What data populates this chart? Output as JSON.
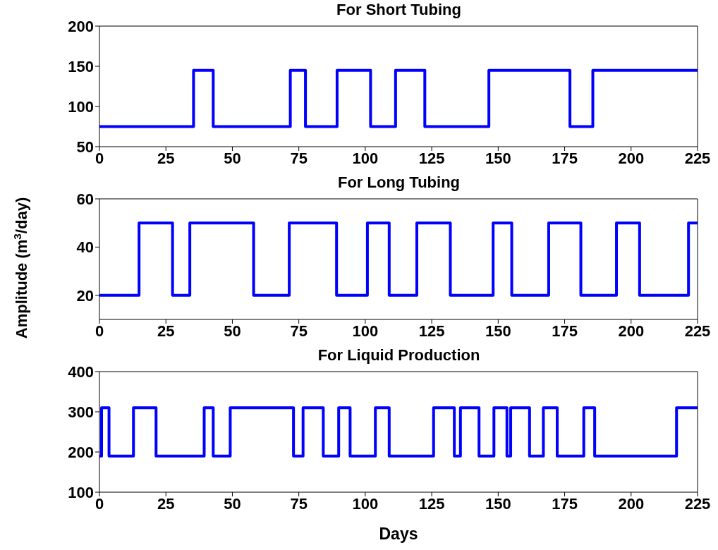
{
  "chart_data": [
    {
      "type": "step",
      "title": "For Short Tubing",
      "color": "#0000ff",
      "x": [
        0,
        35.4,
        42.8,
        71.8,
        77.5,
        89.4,
        102,
        111.4,
        122.4,
        146.5,
        177,
        185.6,
        225
      ],
      "values": [
        75,
        145,
        75,
        145,
        75,
        145,
        75,
        145,
        75,
        145,
        75,
        145,
        145
      ],
      "xlim": [
        0,
        225
      ],
      "xticks": [
        0,
        25,
        50,
        75,
        100,
        125,
        150,
        175,
        200,
        225
      ],
      "ylim": [
        50,
        200
      ],
      "yticks": [
        50,
        100,
        150,
        200
      ]
    },
    {
      "type": "step",
      "title": "For Long Tubing",
      "ylabel": "Amplitude (m$^{3}$/day)",
      "color": "#0000ff",
      "x": [
        0,
        14.9,
        27.5,
        34,
        58,
        71.4,
        89.2,
        100.8,
        109,
        119.4,
        132,
        148.1,
        155.1,
        169,
        181.1,
        194.5,
        203.2,
        221.6,
        225
      ],
      "values": [
        20,
        50,
        20,
        50,
        20,
        50,
        20,
        50,
        20,
        50,
        20,
        50,
        20,
        50,
        20,
        50,
        20,
        50,
        50
      ],
      "xlim": [
        0,
        225
      ],
      "xticks": [
        0,
        25,
        50,
        75,
        100,
        125,
        150,
        175,
        200,
        225
      ],
      "ylim": [
        10,
        60
      ],
      "yticks": [
        20,
        40,
        60
      ]
    },
    {
      "type": "step",
      "title": "For Liquid Production",
      "xlabel": "Days",
      "color": "#0000ff",
      "x": [
        0,
        0.8,
        3.6,
        12.8,
        21.3,
        39.4,
        42.8,
        49.2,
        73,
        76.6,
        84.2,
        90,
        94.3,
        103.8,
        109,
        125.7,
        133.5,
        135.8,
        142.8,
        148.4,
        153.3,
        154.7,
        161.8,
        167,
        172.2,
        182.2,
        186.3,
        217.1,
        225
      ],
      "values": [
        190,
        310,
        190,
        310,
        190,
        310,
        190,
        310,
        190,
        310,
        190,
        310,
        190,
        310,
        190,
        310,
        190,
        310,
        190,
        310,
        190,
        310,
        190,
        310,
        190,
        310,
        190,
        310,
        310
      ],
      "xlim": [
        0,
        225
      ],
      "xticks": [
        0,
        25,
        50,
        75,
        100,
        125,
        150,
        175,
        200,
        225
      ],
      "ylim": [
        100,
        400
      ],
      "yticks": [
        100,
        200,
        300,
        400
      ]
    }
  ]
}
